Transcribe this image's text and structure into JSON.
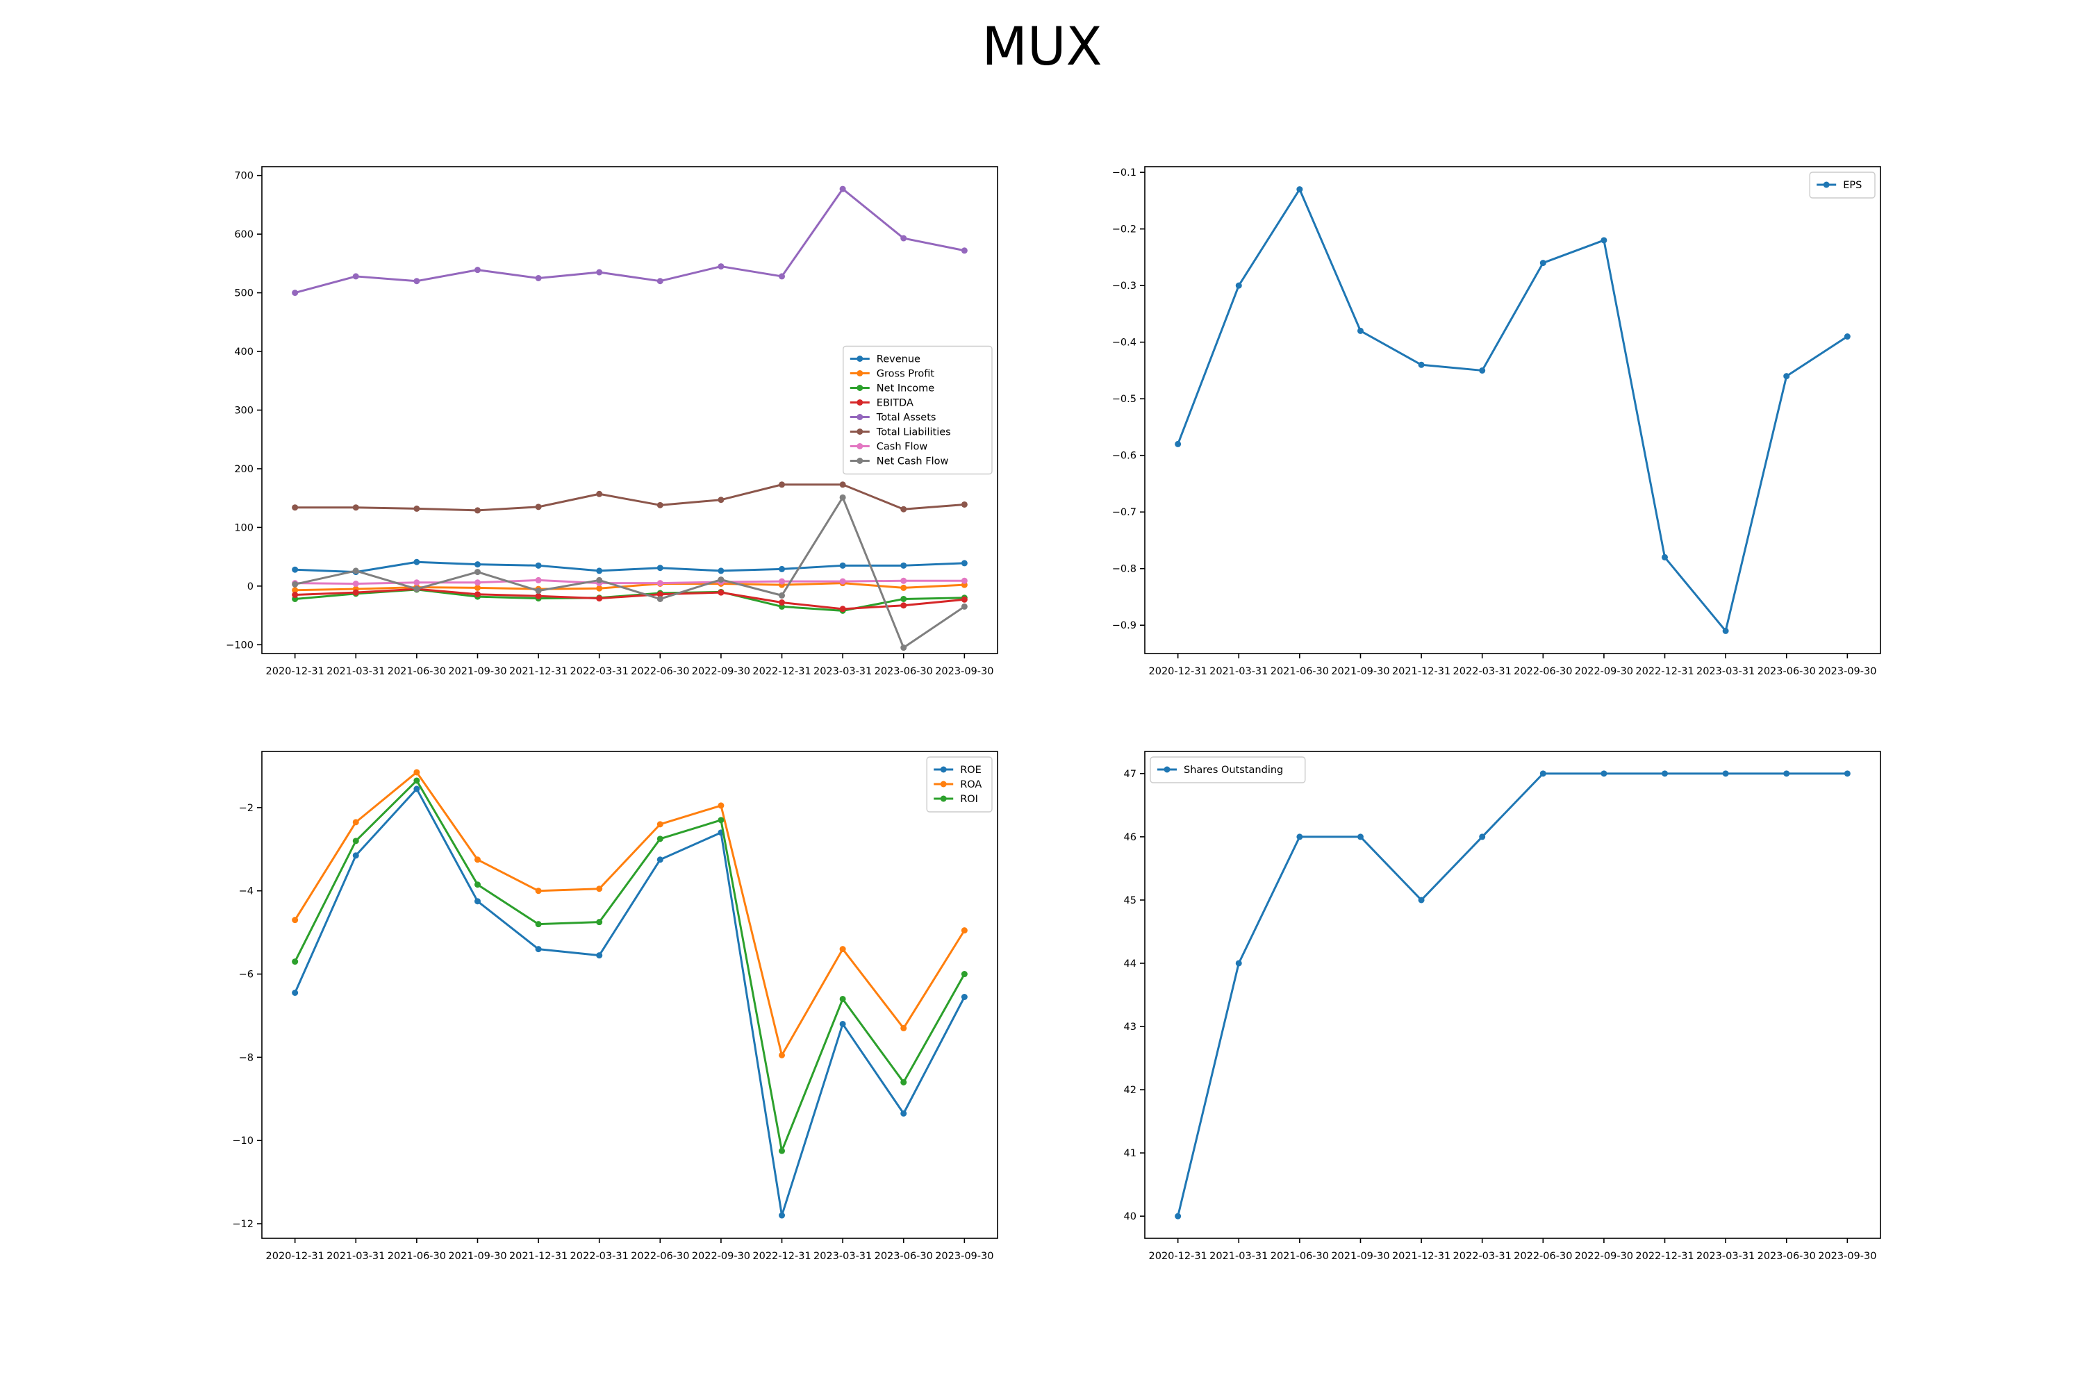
{
  "title": "MUX",
  "chart_data": [
    {
      "type": "line",
      "x": [
        "2020-12-31",
        "2021-03-31",
        "2021-06-30",
        "2021-09-30",
        "2021-12-31",
        "2022-03-31",
        "2022-06-30",
        "2022-09-30",
        "2022-12-31",
        "2023-03-31",
        "2023-06-30",
        "2023-09-30"
      ],
      "ylim": [
        -115,
        715
      ],
      "yticks": [
        -100,
        0,
        100,
        200,
        300,
        400,
        500,
        600,
        700
      ],
      "grid": false,
      "legend": "center-right",
      "series": [
        {
          "name": "Revenue",
          "color": "#1f77b4",
          "values": [
            28,
            24,
            41,
            37,
            35,
            26,
            31,
            26,
            29,
            35,
            35,
            39
          ]
        },
        {
          "name": "Gross Profit",
          "color": "#ff7f0e",
          "values": [
            -7,
            -5,
            -2,
            -3,
            -5,
            -4,
            4,
            4,
            2,
            5,
            -3,
            2
          ]
        },
        {
          "name": "Net Income",
          "color": "#2ca02c",
          "values": [
            -22,
            -13,
            -6,
            -18,
            -21,
            -20,
            -12,
            -10,
            -35,
            -42,
            -22,
            -20
          ]
        },
        {
          "name": "EBITDA",
          "color": "#d62728",
          "values": [
            -15,
            -11,
            -5,
            -14,
            -17,
            -21,
            -14,
            -11,
            -28,
            -39,
            -33,
            -23
          ]
        },
        {
          "name": "Total Assets",
          "color": "#9467bd",
          "values": [
            500,
            528,
            520,
            539,
            525,
            535,
            520,
            545,
            528,
            677,
            593,
            572
          ]
        },
        {
          "name": "Total Liabilities",
          "color": "#8c564b",
          "values": [
            134,
            134,
            132,
            129,
            135,
            157,
            138,
            147,
            173,
            173,
            131,
            139
          ]
        },
        {
          "name": "Cash Flow",
          "color": "#e377c2",
          "values": [
            5,
            4,
            6,
            6,
            10,
            5,
            5,
            7,
            8,
            8,
            9,
            9
          ]
        },
        {
          "name": "Net Cash Flow",
          "color": "#7f7f7f",
          "values": [
            3,
            26,
            -5,
            24,
            -8,
            10,
            -22,
            11,
            -16,
            151,
            -105,
            -35
          ]
        }
      ]
    },
    {
      "type": "line",
      "x": [
        "2020-12-31",
        "2021-03-31",
        "2021-06-30",
        "2021-09-30",
        "2021-12-31",
        "2022-03-31",
        "2022-06-30",
        "2022-09-30",
        "2022-12-31",
        "2023-03-31",
        "2023-06-30",
        "2023-09-30"
      ],
      "ylim": [
        -0.95,
        -0.09
      ],
      "yticks": [
        -0.9,
        -0.8,
        -0.7,
        -0.6,
        -0.5,
        -0.4,
        -0.3,
        -0.2,
        -0.1
      ],
      "grid": false,
      "legend": "top-right",
      "series": [
        {
          "name": "EPS",
          "color": "#1f77b4",
          "values": [
            -0.58,
            -0.3,
            -0.13,
            -0.38,
            -0.44,
            -0.45,
            -0.26,
            -0.22,
            -0.78,
            -0.91,
            -0.46,
            -0.39
          ]
        }
      ]
    },
    {
      "type": "line",
      "x": [
        "2020-12-31",
        "2021-03-31",
        "2021-06-30",
        "2021-09-30",
        "2021-12-31",
        "2022-03-31",
        "2022-06-30",
        "2022-09-30",
        "2022-12-31",
        "2023-03-31",
        "2023-06-30",
        "2023-09-30"
      ],
      "ylim": [
        -12.35,
        -0.65
      ],
      "yticks": [
        -12,
        -10,
        -8,
        -6,
        -4,
        -2
      ],
      "grid": false,
      "legend": "top-right",
      "series": [
        {
          "name": "ROE",
          "color": "#1f77b4",
          "values": [
            -6.45,
            -3.15,
            -1.55,
            -4.25,
            -5.4,
            -5.55,
            -3.25,
            -2.6,
            -11.8,
            -7.2,
            -9.35,
            -6.55
          ]
        },
        {
          "name": "ROA",
          "color": "#ff7f0e",
          "values": [
            -4.7,
            -2.35,
            -1.15,
            -3.25,
            -4.0,
            -3.95,
            -2.4,
            -1.95,
            -7.95,
            -5.4,
            -7.3,
            -4.95
          ]
        },
        {
          "name": "ROI",
          "color": "#2ca02c",
          "values": [
            -5.7,
            -2.8,
            -1.35,
            -3.85,
            -4.8,
            -4.75,
            -2.75,
            -2.3,
            -10.25,
            -6.6,
            -8.6,
            -6.0
          ]
        }
      ]
    },
    {
      "type": "line",
      "x": [
        "2020-12-31",
        "2021-03-31",
        "2021-06-30",
        "2021-09-30",
        "2021-12-31",
        "2022-03-31",
        "2022-06-30",
        "2022-09-30",
        "2022-12-31",
        "2023-03-31",
        "2023-06-30",
        "2023-09-30"
      ],
      "ylim": [
        39.65,
        47.35
      ],
      "yticks": [
        40,
        41,
        42,
        43,
        44,
        45,
        46,
        47
      ],
      "grid": false,
      "legend": "top-left",
      "series": [
        {
          "name": "Shares Outstanding",
          "color": "#1f77b4",
          "values": [
            40,
            44,
            46,
            46,
            45,
            46,
            47,
            47,
            47,
            47,
            47,
            47
          ]
        }
      ]
    }
  ]
}
